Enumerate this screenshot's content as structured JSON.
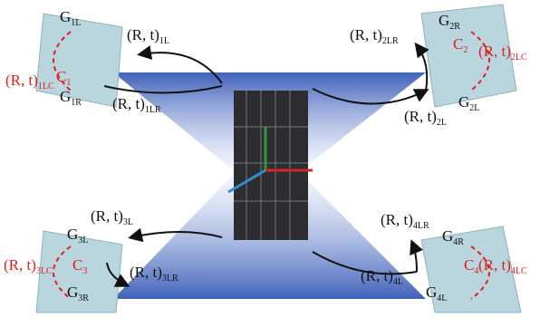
{
  "labels": {
    "g1l": {
      "main": "G",
      "sub": "1L"
    },
    "g1r": {
      "main": "G",
      "sub": "1R"
    },
    "c1": {
      "main": "C",
      "sub": "1"
    },
    "rt1lc": {
      "main": "(R, t)",
      "sub": "1LC"
    },
    "rt1l": {
      "main": "(R, t)",
      "sub": "1L"
    },
    "rt1lr": {
      "main": "(R, t)",
      "sub": "1LR"
    },
    "g2r": {
      "main": "G",
      "sub": "2R"
    },
    "g2l": {
      "main": "G",
      "sub": "2L"
    },
    "c2": {
      "main": "C",
      "sub": "2"
    },
    "rt2lc": {
      "main": "(R, t)",
      "sub": "2LC"
    },
    "rt2lr": {
      "main": "(R, t)",
      "sub": "2LR"
    },
    "rt2l": {
      "main": "(R, t)",
      "sub": "2L"
    },
    "g3l": {
      "main": "G",
      "sub": "3L"
    },
    "g3r": {
      "main": "G",
      "sub": "3R"
    },
    "c3": {
      "main": "C",
      "sub": "3"
    },
    "rt3lc": {
      "main": "(R, t)",
      "sub": "3LC"
    },
    "rt3l": {
      "main": "(R, t)",
      "sub": "3L"
    },
    "rt3lr": {
      "main": "(R, t)",
      "sub": "3LR"
    },
    "g4r": {
      "main": "G",
      "sub": "4R"
    },
    "g4l": {
      "main": "G",
      "sub": "4L"
    },
    "c4": {
      "main": "C",
      "sub": "4"
    },
    "rt4lc": {
      "main": "(R, t)",
      "sub": "4LC"
    },
    "rt4lr": {
      "main": "(R, t)",
      "sub": "4LR"
    },
    "rt4l": {
      "main": "(R, t)",
      "sub": "4L"
    }
  }
}
